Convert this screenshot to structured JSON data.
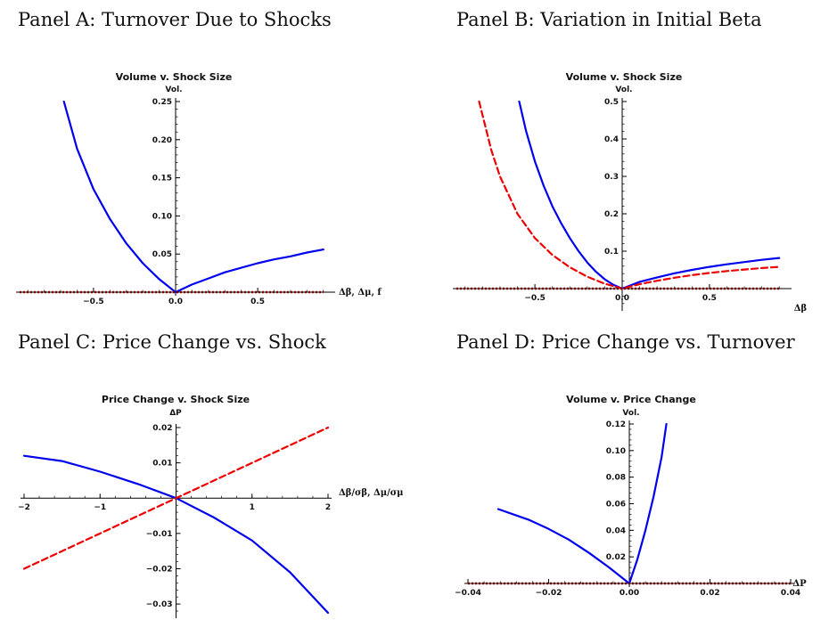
{
  "panels": [
    {
      "label": "Panel A: Turnover Due to Shocks"
    },
    {
      "label": "Panel B: Variation in Initial Beta"
    },
    {
      "label": "Panel C: Price Change vs. Shock"
    },
    {
      "label": "Panel D: Price Change vs. Turnover"
    }
  ],
  "chart_data": [
    {
      "type": "line",
      "title": "Volume v. Shock Size",
      "ylabel": "Vol.",
      "xlabel": "Δβ, Δμ, f",
      "xlim": [
        -0.95,
        0.95
      ],
      "ylim": [
        0,
        0.25
      ],
      "xticks": [
        -0.5,
        0.0,
        0.5
      ],
      "xtick_labels": [
        "−0.5",
        "0.0",
        "0.5"
      ],
      "yticks": [
        0.05,
        0.1,
        0.15,
        0.2,
        0.25
      ],
      "ytick_labels": [
        "0.05",
        "0.10",
        "0.15",
        "0.20",
        "0.25"
      ],
      "series": [
        {
          "color": "#0000ee",
          "style": "solid",
          "x": [
            -0.68,
            -0.6,
            -0.5,
            -0.4,
            -0.3,
            -0.2,
            -0.1,
            0.0,
            0.1,
            0.2,
            0.3,
            0.4,
            0.5,
            0.6,
            0.7,
            0.8,
            0.9
          ],
          "y": [
            0.25,
            0.188,
            0.135,
            0.096,
            0.064,
            0.038,
            0.017,
            0.0,
            0.01,
            0.018,
            0.026,
            0.032,
            0.038,
            0.043,
            0.047,
            0.052,
            0.056
          ]
        },
        {
          "color": "#7a0000",
          "style": "dotted",
          "x": [
            -0.95,
            0.9
          ],
          "y": [
            0.0,
            0.0
          ]
        }
      ]
    },
    {
      "type": "line",
      "title": "Volume v. Shock Size",
      "ylabel": "Vol.",
      "xlabel": "Δβ",
      "xlim": [
        -0.95,
        0.95
      ],
      "ylim": [
        -0.05,
        0.5
      ],
      "xticks": [
        -0.5,
        0.0,
        0.5
      ],
      "xtick_labels": [
        "−0.5",
        "0.0",
        "0.5"
      ],
      "yticks": [
        0.1,
        0.2,
        0.3,
        0.4,
        0.5
      ],
      "ytick_labels": [
        "0.1",
        "0.2",
        "0.3",
        "0.4",
        "0.5"
      ],
      "series": [
        {
          "color": "#0000ee",
          "style": "solid",
          "x": [
            -0.59,
            -0.55,
            -0.5,
            -0.45,
            -0.4,
            -0.35,
            -0.3,
            -0.25,
            -0.2,
            -0.15,
            -0.1,
            -0.05,
            0.0,
            0.1,
            0.2,
            0.3,
            0.4,
            0.5,
            0.6,
            0.7,
            0.8,
            0.9
          ],
          "y": [
            0.5,
            0.42,
            0.34,
            0.275,
            0.22,
            0.175,
            0.135,
            0.1,
            0.07,
            0.045,
            0.025,
            0.01,
            0.0,
            0.018,
            0.03,
            0.041,
            0.05,
            0.058,
            0.065,
            0.071,
            0.077,
            0.082
          ]
        },
        {
          "color": "#ee0000",
          "style": "dashed",
          "x": [
            -0.82,
            -0.75,
            -0.7,
            -0.6,
            -0.5,
            -0.4,
            -0.3,
            -0.2,
            -0.1,
            0.0,
            0.1,
            0.2,
            0.3,
            0.4,
            0.5,
            0.6,
            0.7,
            0.8,
            0.9
          ],
          "y": [
            0.5,
            0.37,
            0.3,
            0.2,
            0.135,
            0.09,
            0.057,
            0.032,
            0.013,
            0.0,
            0.012,
            0.021,
            0.029,
            0.036,
            0.042,
            0.047,
            0.051,
            0.055,
            0.058
          ]
        },
        {
          "color": "#7a0000",
          "style": "dotted",
          "x": [
            -0.95,
            0.9
          ],
          "y": [
            0.0,
            0.0
          ]
        }
      ]
    },
    {
      "type": "line",
      "title": "Price Change v. Shock Size",
      "ylabel": "ΔP",
      "xlabel": "Δβ/σβ, Δμ/σμ",
      "xlim": [
        -2,
        2
      ],
      "ylim": [
        -0.033,
        0.02
      ],
      "xticks": [
        -2,
        -1,
        1,
        2
      ],
      "xtick_labels": [
        "−2",
        "−1",
        "1",
        "2"
      ],
      "yticks": [
        -0.03,
        -0.02,
        -0.01,
        0.01,
        0.02
      ],
      "ytick_labels": [
        "−0.03",
        "−0.02",
        "−0.01",
        "0.01",
        "0.02"
      ],
      "series": [
        {
          "color": "#0000ee",
          "style": "solid",
          "x": [
            -2,
            -1.5,
            -1,
            -0.5,
            0,
            0.5,
            1,
            1.5,
            2
          ],
          "y": [
            0.012,
            0.0105,
            0.0075,
            0.004,
            0.0,
            -0.0055,
            -0.012,
            -0.021,
            -0.0325
          ]
        },
        {
          "color": "#ee0000",
          "style": "dashed",
          "x": [
            -2,
            2
          ],
          "y": [
            -0.02,
            0.02
          ]
        }
      ]
    },
    {
      "type": "line",
      "title": "Volume v. Price Change",
      "ylabel": "Vol.",
      "xlabel": "ΔP",
      "xlim": [
        -0.04,
        0.04
      ],
      "ylim": [
        0,
        0.12
      ],
      "xticks": [
        -0.04,
        -0.02,
        0.0,
        0.02,
        0.04
      ],
      "xtick_labels": [
        "−0.04",
        "−0.02",
        "0.00",
        "0.02",
        "0.04"
      ],
      "yticks": [
        0.02,
        0.04,
        0.06,
        0.08,
        0.1,
        0.12
      ],
      "ytick_labels": [
        "0.02",
        "0.04",
        "0.06",
        "0.08",
        "0.10",
        "0.12"
      ],
      "series": [
        {
          "color": "#0000ee",
          "style": "solid",
          "x": [
            -0.0325,
            -0.025,
            -0.02,
            -0.015,
            -0.01,
            -0.005,
            0.0,
            0.002,
            0.004,
            0.006,
            0.008,
            0.0092
          ],
          "y": [
            0.056,
            0.048,
            0.041,
            0.033,
            0.023,
            0.012,
            0.0,
            0.018,
            0.04,
            0.065,
            0.095,
            0.12
          ]
        },
        {
          "color": "#7a0000",
          "style": "dotted",
          "x": [
            -0.04,
            0.04
          ],
          "y": [
            0.0,
            0.0
          ]
        }
      ]
    }
  ]
}
